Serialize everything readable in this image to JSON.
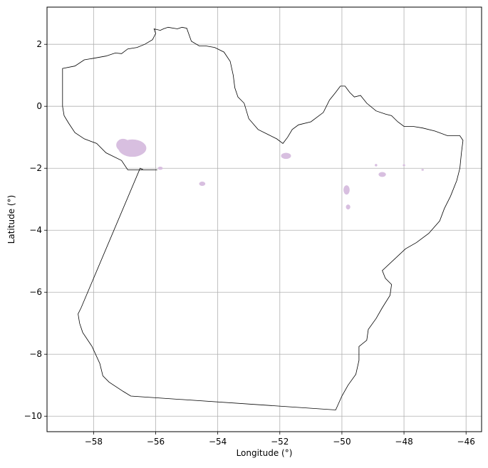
{
  "chart_data": {
    "type": "map",
    "xlabel": "Longitude (°)",
    "ylabel": "Latitude (°)",
    "xlim": [
      -59.5,
      -45.5
    ],
    "ylim": [
      -10.5,
      3.2
    ],
    "x_ticks": [
      -58,
      -56,
      -54,
      -52,
      -50,
      -48,
      -46
    ],
    "y_ticks": [
      2,
      0,
      -2,
      -4,
      -6,
      -8,
      -10
    ],
    "x_tick_labels": [
      "−58",
      "−56",
      "−54",
      "−52",
      "−50",
      "−48",
      "−46"
    ],
    "y_tick_labels": [
      "2",
      "0",
      "−2",
      "−4",
      "−6",
      "−8",
      "−10"
    ],
    "grid": true,
    "colors": {
      "boundary": "#000000",
      "patches": "#d8bfe0",
      "grid": "#b0b0b0"
    },
    "boundary": [
      [
        -59.0,
        1.22
      ],
      [
        -58.6,
        1.3
      ],
      [
        -58.3,
        1.5
      ],
      [
        -58.0,
        1.55
      ],
      [
        -57.6,
        1.62
      ],
      [
        -57.3,
        1.72
      ],
      [
        -57.1,
        1.7
      ],
      [
        -56.9,
        1.85
      ],
      [
        -56.6,
        1.9
      ],
      [
        -56.35,
        2.0
      ],
      [
        -56.1,
        2.15
      ],
      [
        -56.0,
        2.35
      ],
      [
        -56.05,
        2.5
      ],
      [
        -55.85,
        2.45
      ],
      [
        -55.75,
        2.5
      ],
      [
        -55.6,
        2.55
      ],
      [
        -55.3,
        2.5
      ],
      [
        -55.15,
        2.55
      ],
      [
        -55.0,
        2.52
      ],
      [
        -54.85,
        2.1
      ],
      [
        -54.6,
        1.95
      ],
      [
        -54.4,
        1.95
      ],
      [
        -54.1,
        1.9
      ],
      [
        -53.8,
        1.75
      ],
      [
        -53.6,
        1.45
      ],
      [
        -53.5,
        1.0
      ],
      [
        -53.45,
        0.6
      ],
      [
        -53.35,
        0.3
      ],
      [
        -53.15,
        0.1
      ],
      [
        -53.0,
        -0.4
      ],
      [
        -52.7,
        -0.75
      ],
      [
        -52.4,
        -0.9
      ],
      [
        -52.1,
        -1.05
      ],
      [
        -51.9,
        -1.2
      ],
      [
        -51.75,
        -1.0
      ],
      [
        -51.6,
        -0.75
      ],
      [
        -51.4,
        -0.6
      ],
      [
        -51.0,
        -0.5
      ],
      [
        -50.6,
        -0.2
      ],
      [
        -50.4,
        0.2
      ],
      [
        -50.2,
        0.45
      ],
      [
        -50.05,
        0.65
      ],
      [
        -49.9,
        0.65
      ],
      [
        -49.75,
        0.45
      ],
      [
        -49.6,
        0.3
      ],
      [
        -49.4,
        0.35
      ],
      [
        -49.2,
        0.1
      ],
      [
        -48.9,
        -0.15
      ],
      [
        -48.6,
        -0.25
      ],
      [
        -48.4,
        -0.3
      ],
      [
        -48.2,
        -0.5
      ],
      [
        -48.0,
        -0.65
      ],
      [
        -47.7,
        -0.65
      ],
      [
        -47.4,
        -0.7
      ],
      [
        -47.0,
        -0.8
      ],
      [
        -46.6,
        -0.95
      ],
      [
        -46.2,
        -0.95
      ],
      [
        -46.1,
        -1.1
      ],
      [
        -46.15,
        -1.5
      ],
      [
        -46.2,
        -2.0
      ],
      [
        -46.3,
        -2.4
      ],
      [
        -46.5,
        -2.9
      ],
      [
        -46.7,
        -3.3
      ],
      [
        -46.85,
        -3.7
      ],
      [
        -47.2,
        -4.1
      ],
      [
        -47.6,
        -4.4
      ],
      [
        -47.95,
        -4.6
      ],
      [
        -48.7,
        -5.3
      ],
      [
        -48.6,
        -5.55
      ],
      [
        -48.4,
        -5.75
      ],
      [
        -48.45,
        -6.1
      ],
      [
        -48.7,
        -6.5
      ],
      [
        -48.9,
        -6.85
      ],
      [
        -49.15,
        -7.2
      ],
      [
        -49.2,
        -7.55
      ],
      [
        -49.45,
        -7.75
      ],
      [
        -49.45,
        -8.2
      ],
      [
        -49.55,
        -8.65
      ],
      [
        -49.8,
        -9.0
      ],
      [
        -50.0,
        -9.35
      ],
      [
        -50.2,
        -9.8
      ],
      [
        -56.8,
        -9.35
      ],
      [
        -57.05,
        -9.2
      ],
      [
        -57.5,
        -8.9
      ],
      [
        -57.7,
        -8.7
      ],
      [
        -57.8,
        -8.3
      ],
      [
        -58.05,
        -7.75
      ],
      [
        -58.35,
        -7.3
      ],
      [
        -58.45,
        -7.0
      ],
      [
        -58.5,
        -6.7
      ],
      [
        -58.4,
        -6.5
      ],
      [
        -56.5,
        -2.0
      ],
      [
        -56.4,
        -2.05
      ],
      [
        -56.2,
        -2.05
      ],
      [
        -55.95,
        -2.05
      ],
      [
        -56.4,
        -2.05
      ],
      [
        -56.9,
        -2.05
      ],
      [
        -57.1,
        -1.75
      ],
      [
        -57.6,
        -1.5
      ],
      [
        -57.9,
        -1.2
      ],
      [
        -58.3,
        -1.05
      ],
      [
        -58.6,
        -0.85
      ],
      [
        -58.8,
        -0.55
      ],
      [
        -58.95,
        -0.3
      ],
      [
        -59.0,
        0.0
      ],
      [
        -59.0,
        1.22
      ]
    ],
    "patches": [
      {
        "lon": -56.75,
        "lat": -1.35,
        "rx": 0.45,
        "ry": 0.28
      },
      {
        "lon": -57.05,
        "lat": -1.25,
        "rx": 0.22,
        "ry": 0.2
      },
      {
        "lon": -55.85,
        "lat": -2.0,
        "rx": 0.08,
        "ry": 0.05
      },
      {
        "lon": -54.5,
        "lat": -2.5,
        "rx": 0.1,
        "ry": 0.07
      },
      {
        "lon": -51.8,
        "lat": -1.6,
        "rx": 0.16,
        "ry": 0.1
      },
      {
        "lon": -49.85,
        "lat": -2.7,
        "rx": 0.1,
        "ry": 0.15
      },
      {
        "lon": -49.8,
        "lat": -3.25,
        "rx": 0.07,
        "ry": 0.08
      },
      {
        "lon": -48.7,
        "lat": -2.2,
        "rx": 0.12,
        "ry": 0.08
      },
      {
        "lon": -48.9,
        "lat": -1.9,
        "rx": 0.04,
        "ry": 0.04
      },
      {
        "lon": -48.0,
        "lat": -1.9,
        "rx": 0.04,
        "ry": 0.03
      },
      {
        "lon": -47.4,
        "lat": -2.05,
        "rx": 0.04,
        "ry": 0.03
      }
    ]
  }
}
